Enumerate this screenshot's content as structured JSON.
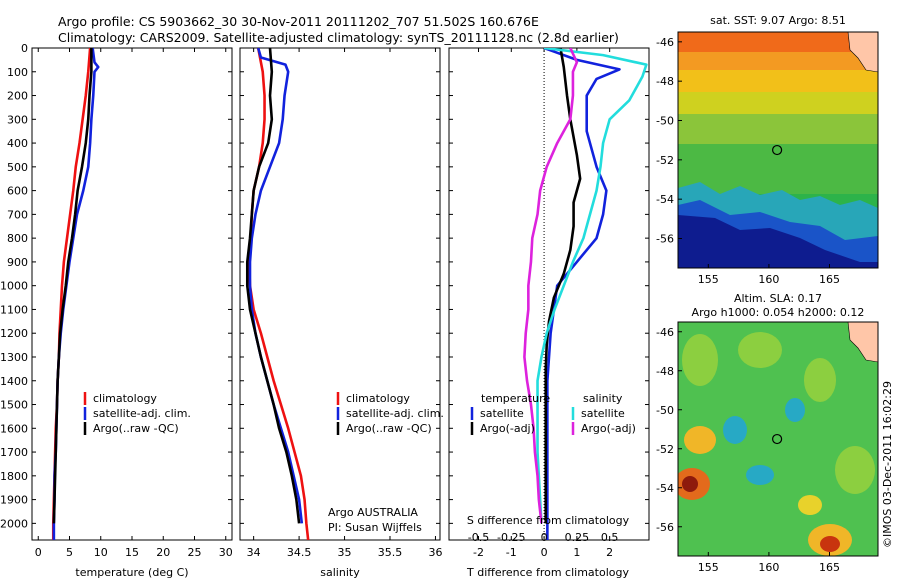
{
  "header": {
    "line1": "Argo profile: CS 5903662_30 30-Nov-2011 20111202_707 51.502S 160.676E",
    "line2": "Climatology: CARS2009. Satellite-adjusted climatology: synTS_20111128.nc (2.8d earlier)"
  },
  "colors": {
    "clim": "#ee1111",
    "sat": "#1122dd",
    "argo": "#000000",
    "sat_diff": "#22dddd",
    "argo_diff": "#dd22dd"
  },
  "legends": {
    "temp": [
      "climatology",
      "satellite-adj. clim.",
      "Argo(..raw -QC)"
    ],
    "sal": [
      "climatology",
      "satellite-adj. clim.",
      "Argo(..raw -QC)"
    ],
    "diff_temp_title": "temperature",
    "diff_sal_title": "salinity",
    "diff_temp": [
      "satellite",
      "Argo(-adj)"
    ],
    "diff_sal": [
      "satellite",
      "Argo(-adj)"
    ]
  },
  "annotations": {
    "argo_center": "Argo AUSTRALIA",
    "pi": "PI: Susan Wijffels",
    "s_diff_title": "S difference from climatology"
  },
  "maps": {
    "sst_title": "sat. SST: 9.07 Argo: 8.51",
    "sla_title1": "Altim. SLA: 0.17",
    "sla_title2": "Argo h1000: 0.054 h2000: 0.12",
    "lat_ticks": [
      "-46",
      "-48",
      "-50",
      "-52",
      "-54",
      "-56"
    ],
    "lon_ticks": [
      "155",
      "160",
      "165"
    ],
    "float_position": {
      "lon": 160.676,
      "lat": -51.502
    }
  },
  "side_text": "©IMOS 03-Dec-2011 16:02:29",
  "chart_data": [
    {
      "type": "line",
      "title": "",
      "xlabel": "temperature (deg C)",
      "ylabel": "",
      "xlim": [
        -1,
        31
      ],
      "ylim": [
        2070,
        0
      ],
      "x_ticks": [
        "0",
        "5",
        "10",
        "15",
        "20",
        "25",
        "30"
      ],
      "y_ticks": [
        "0",
        "100",
        "200",
        "300",
        "400",
        "500",
        "600",
        "700",
        "800",
        "900",
        "1000",
        "1100",
        "1200",
        "1300",
        "1400",
        "1500",
        "1600",
        "1700",
        "1800",
        "1900",
        "2000"
      ],
      "series": [
        {
          "name": "climatology",
          "color": "#ee1111",
          "points": [
            [
              8.3,
              0
            ],
            [
              8.0,
              100
            ],
            [
              7.6,
              200
            ],
            [
              7.1,
              300
            ],
            [
              6.6,
              400
            ],
            [
              6.0,
              500
            ],
            [
              5.6,
              600
            ],
            [
              5.1,
              700
            ],
            [
              4.6,
              800
            ],
            [
              4.1,
              900
            ],
            [
              3.8,
              1000
            ],
            [
              3.6,
              1100
            ],
            [
              3.4,
              1200
            ],
            [
              3.3,
              1300
            ],
            [
              3.1,
              1400
            ],
            [
              3.0,
              1500
            ],
            [
              2.8,
              1600
            ],
            [
              2.7,
              1700
            ],
            [
              2.6,
              1800
            ],
            [
              2.5,
              1900
            ],
            [
              2.4,
              2000
            ],
            [
              2.4,
              2070
            ]
          ]
        },
        {
          "name": "satellite-adj. clim.",
          "color": "#1122dd",
          "points": [
            [
              8.7,
              0
            ],
            [
              9.0,
              60
            ],
            [
              9.6,
              80
            ],
            [
              9.0,
              100
            ],
            [
              8.8,
              200
            ],
            [
              8.5,
              300
            ],
            [
              8.3,
              400
            ],
            [
              8.0,
              500
            ],
            [
              7.2,
              600
            ],
            [
              6.2,
              700
            ],
            [
              5.6,
              800
            ],
            [
              5.0,
              900
            ],
            [
              4.5,
              1000
            ],
            [
              4.0,
              1100
            ],
            [
              3.6,
              1200
            ],
            [
              3.3,
              1300
            ],
            [
              3.1,
              1400
            ],
            [
              3.0,
              1500
            ],
            [
              2.9,
              1600
            ],
            [
              2.8,
              1700
            ],
            [
              2.6,
              1800
            ],
            [
              2.6,
              1900
            ],
            [
              2.5,
              2000
            ],
            [
              2.5,
              2070
            ]
          ]
        },
        {
          "name": "Argo(..raw -QC)",
          "color": "#000000",
          "points": [
            [
              8.5,
              0
            ],
            [
              8.5,
              100
            ],
            [
              8.2,
              200
            ],
            [
              8.0,
              300
            ],
            [
              7.6,
              400
            ],
            [
              7.0,
              500
            ],
            [
              6.3,
              600
            ],
            [
              5.9,
              700
            ],
            [
              5.4,
              800
            ],
            [
              4.8,
              900
            ],
            [
              4.4,
              1000
            ],
            [
              3.9,
              1100
            ],
            [
              3.5,
              1200
            ],
            [
              3.3,
              1300
            ],
            [
              3.1,
              1400
            ],
            [
              3.0,
              1500
            ],
            [
              2.9,
              1600
            ],
            [
              2.8,
              1700
            ],
            [
              2.7,
              1800
            ],
            [
              2.6,
              1900
            ],
            [
              2.5,
              2000
            ]
          ]
        }
      ]
    },
    {
      "type": "line",
      "title": "",
      "xlabel": "salinity",
      "ylabel": "",
      "xlim": [
        33.85,
        36.05
      ],
      "ylim": [
        2070,
        0
      ],
      "x_ticks": [
        "34",
        "34.5",
        "35",
        "35.5",
        "36"
      ],
      "series": [
        {
          "name": "climatology",
          "color": "#ee1111",
          "points": [
            [
              34.05,
              0
            ],
            [
              34.1,
              100
            ],
            [
              34.12,
              200
            ],
            [
              34.12,
              300
            ],
            [
              34.1,
              400
            ],
            [
              34.06,
              500
            ],
            [
              34.0,
              600
            ],
            [
              33.98,
              700
            ],
            [
              33.97,
              800
            ],
            [
              33.95,
              900
            ],
            [
              33.96,
              1000
            ],
            [
              34.0,
              1100
            ],
            [
              34.08,
              1200
            ],
            [
              34.15,
              1300
            ],
            [
              34.22,
              1400
            ],
            [
              34.3,
              1500
            ],
            [
              34.38,
              1600
            ],
            [
              34.45,
              1700
            ],
            [
              34.52,
              1800
            ],
            [
              34.56,
              1900
            ],
            [
              34.58,
              2000
            ],
            [
              34.6,
              2070
            ]
          ]
        },
        {
          "name": "satellite-adj. clim.",
          "color": "#1122dd",
          "points": [
            [
              34.05,
              0
            ],
            [
              34.08,
              40
            ],
            [
              34.35,
              70
            ],
            [
              34.38,
              100
            ],
            [
              34.34,
              200
            ],
            [
              34.32,
              300
            ],
            [
              34.28,
              400
            ],
            [
              34.18,
              500
            ],
            [
              34.08,
              600
            ],
            [
              34.02,
              700
            ],
            [
              33.98,
              800
            ],
            [
              33.96,
              900
            ],
            [
              33.96,
              1000
            ],
            [
              33.98,
              1100
            ],
            [
              34.02,
              1200
            ],
            [
              34.08,
              1300
            ],
            [
              34.15,
              1400
            ],
            [
              34.22,
              1500
            ],
            [
              34.3,
              1600
            ],
            [
              34.38,
              1700
            ],
            [
              34.44,
              1800
            ],
            [
              34.5,
              1900
            ],
            [
              34.53,
              2000
            ]
          ]
        },
        {
          "name": "Argo(..raw -QC)",
          "color": "#000000",
          "points": [
            [
              34.18,
              0
            ],
            [
              34.2,
              100
            ],
            [
              34.18,
              200
            ],
            [
              34.2,
              300
            ],
            [
              34.16,
              400
            ],
            [
              34.06,
              500
            ],
            [
              34.0,
              600
            ],
            [
              33.98,
              700
            ],
            [
              33.96,
              800
            ],
            [
              33.93,
              900
            ],
            [
              33.93,
              1000
            ],
            [
              33.96,
              1100
            ],
            [
              34.02,
              1200
            ],
            [
              34.08,
              1300
            ],
            [
              34.15,
              1400
            ],
            [
              34.22,
              1500
            ],
            [
              34.28,
              1600
            ],
            [
              34.36,
              1700
            ],
            [
              34.42,
              1800
            ],
            [
              34.47,
              1900
            ],
            [
              34.5,
              2000
            ]
          ]
        }
      ]
    },
    {
      "type": "line",
      "title": "",
      "xlabel": "T difference from climatology",
      "ylabel": "",
      "xlim": [
        -2.9,
        3.2
      ],
      "ylim": [
        2070,
        0
      ],
      "x_ticks": [
        "-2",
        "-1",
        "0",
        "1",
        "2"
      ],
      "x_ticks_top_S": [
        "-0.5",
        "-0.25",
        "0",
        "0.25",
        "0.5"
      ],
      "series": [
        {
          "name": "temperature satellite",
          "color": "#1122dd",
          "points": [
            [
              0.0,
              0
            ],
            [
              0.3,
              15
            ],
            [
              1.0,
              50
            ],
            [
              2.3,
              90
            ],
            [
              1.6,
              130
            ],
            [
              1.3,
              200
            ],
            [
              1.3,
              350
            ],
            [
              1.6,
              500
            ],
            [
              1.9,
              600
            ],
            [
              1.8,
              700
            ],
            [
              1.6,
              800
            ],
            [
              1.0,
              900
            ],
            [
              0.4,
              1000
            ],
            [
              0.3,
              1100
            ],
            [
              0.2,
              1200
            ],
            [
              0.15,
              1300
            ],
            [
              0.1,
              1400
            ],
            [
              0.1,
              1500
            ],
            [
              0.1,
              1600
            ],
            [
              0.1,
              1700
            ],
            [
              0.1,
              1800
            ],
            [
              0.1,
              1900
            ],
            [
              0.1,
              2000
            ],
            [
              0.1,
              2070
            ]
          ]
        },
        {
          "name": "temperature Argo(-adj)",
          "color": "#000000",
          "points": [
            [
              0.5,
              0
            ],
            [
              0.6,
              80
            ],
            [
              0.7,
              200
            ],
            [
              0.8,
              300
            ],
            [
              1.0,
              450
            ],
            [
              1.1,
              550
            ],
            [
              0.9,
              650
            ],
            [
              0.9,
              750
            ],
            [
              0.8,
              850
            ],
            [
              0.6,
              950
            ],
            [
              0.3,
              1050
            ],
            [
              0.15,
              1150
            ],
            [
              0.08,
              1250
            ],
            [
              0.05,
              1350
            ],
            [
              0.05,
              1500
            ],
            [
              0.05,
              1700
            ],
            [
              0.05,
              1900
            ],
            [
              0.05,
              2000
            ]
          ]
        },
        {
          "name": "salinity satellite",
          "color": "#22dddd",
          "points": [
            [
              0.0,
              0
            ],
            [
              0.45,
              30
            ],
            [
              0.78,
              70
            ],
            [
              0.75,
              120
            ],
            [
              0.65,
              220
            ],
            [
              0.5,
              300
            ],
            [
              0.45,
              400
            ],
            [
              0.43,
              500
            ],
            [
              0.4,
              600
            ],
            [
              0.35,
              700
            ],
            [
              0.3,
              800
            ],
            [
              0.22,
              900
            ],
            [
              0.15,
              1000
            ],
            [
              0.08,
              1100
            ],
            [
              0.02,
              1200
            ],
            [
              -0.02,
              1300
            ],
            [
              -0.05,
              1400
            ],
            [
              -0.05,
              1500
            ],
            [
              -0.05,
              1600
            ],
            [
              -0.05,
              1700
            ],
            [
              -0.04,
              1800
            ],
            [
              -0.03,
              1900
            ],
            [
              -0.02,
              2000
            ]
          ]
        },
        {
          "name": "salinity Argo(-adj)",
          "color": "#dd22dd",
          "points": [
            [
              0.2,
              0
            ],
            [
              0.25,
              60
            ],
            [
              0.22,
              100
            ],
            [
              0.22,
              200
            ],
            [
              0.2,
              300
            ],
            [
              0.1,
              400
            ],
            [
              0.02,
              500
            ],
            [
              -0.03,
              600
            ],
            [
              -0.05,
              700
            ],
            [
              -0.09,
              800
            ],
            [
              -0.1,
              900
            ],
            [
              -0.12,
              1000
            ],
            [
              -0.12,
              1100
            ],
            [
              -0.14,
              1200
            ],
            [
              -0.15,
              1300
            ],
            [
              -0.13,
              1400
            ],
            [
              -0.1,
              1500
            ],
            [
              -0.08,
              1600
            ],
            [
              -0.07,
              1700
            ],
            [
              -0.05,
              1800
            ],
            [
              -0.04,
              1900
            ],
            [
              -0.02,
              2000
            ]
          ]
        }
      ]
    },
    {
      "type": "heatmap",
      "title": "sat. SST: 9.07 Argo: 8.51",
      "xlim": [
        152.5,
        169
      ],
      "ylim": [
        -57.5,
        -45.5
      ],
      "x_ticks": [
        "155",
        "160",
        "165"
      ],
      "y_ticks": [
        "-46",
        "-48",
        "-50",
        "-52",
        "-54",
        "-56"
      ]
    },
    {
      "type": "heatmap",
      "title": "Altim. SLA: 0.17",
      "xlim": [
        152.5,
        169
      ],
      "ylim": [
        -57.5,
        -45.5
      ],
      "x_ticks": [
        "155",
        "160",
        "165"
      ],
      "y_ticks": [
        "-46",
        "-48",
        "-50",
        "-52",
        "-54",
        "-56"
      ]
    }
  ]
}
